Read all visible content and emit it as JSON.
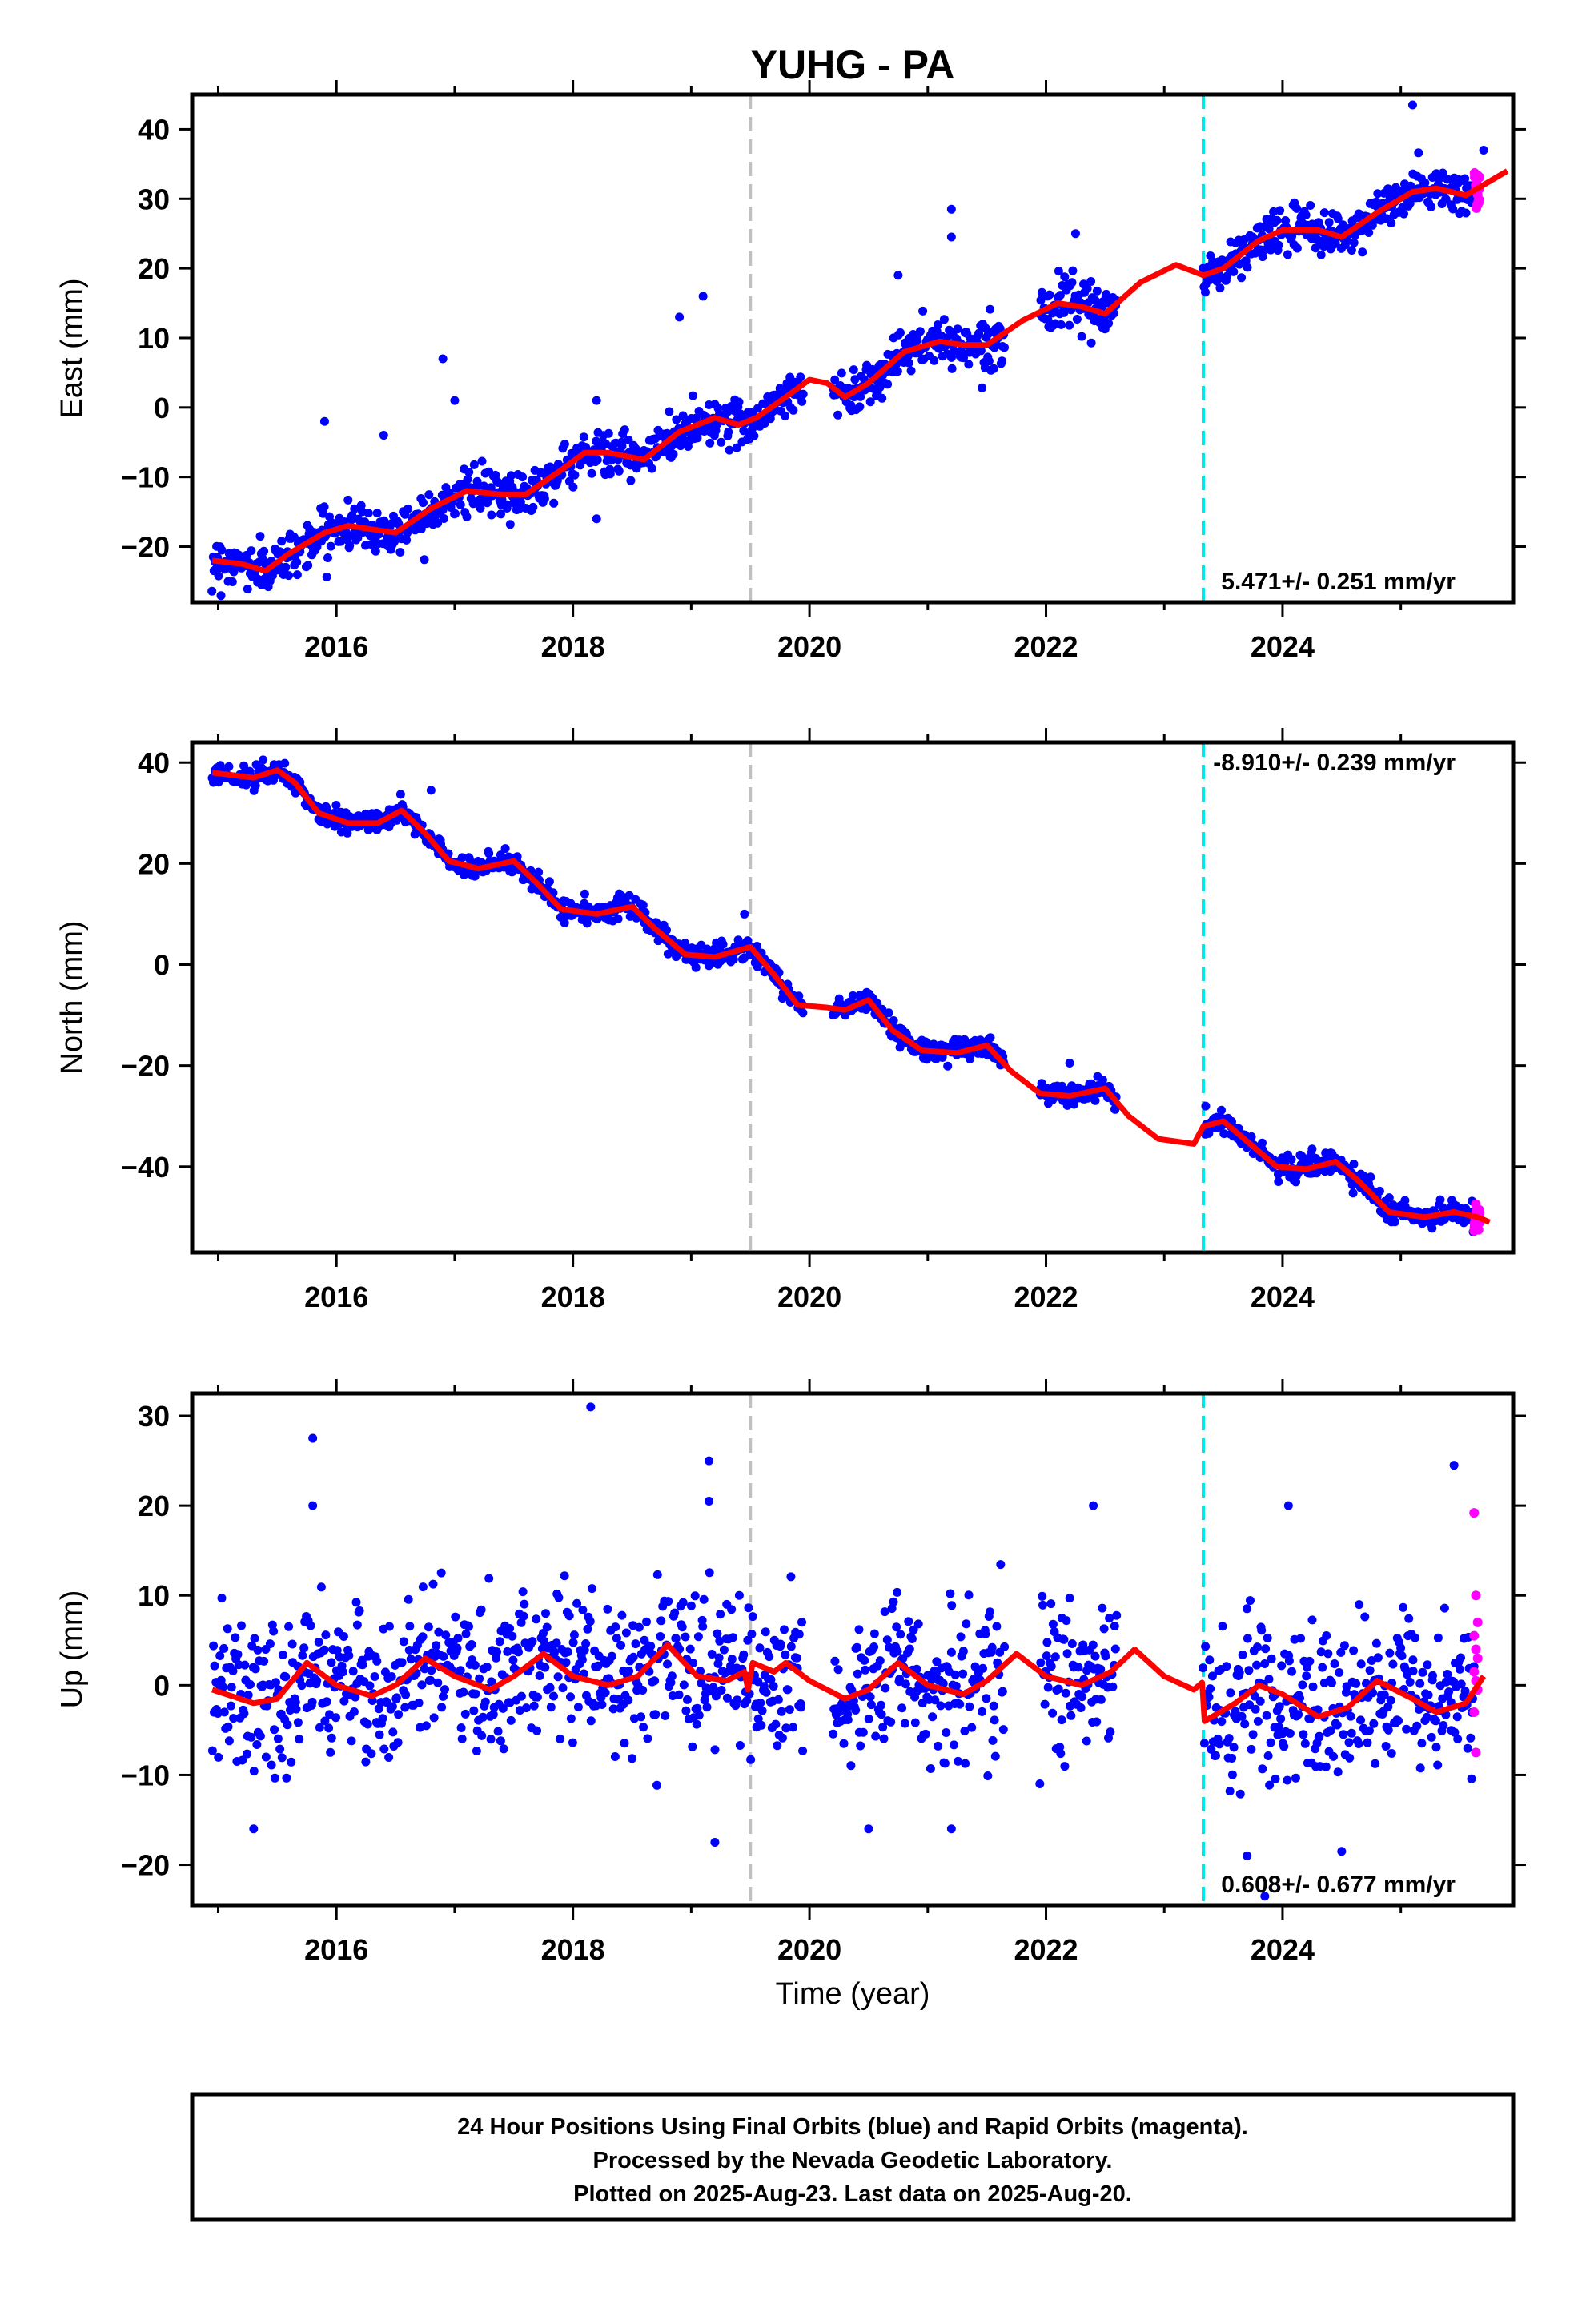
{
  "title": "YUHG - PA",
  "xlabel": "Time (year)",
  "footer": [
    "24 Hour Positions Using Final Orbits (blue) and Rapid Orbits (magenta).",
    "Processed by the Nevada Geodetic Laboratory.",
    "Plotted on 2025-Aug-23. Last data on 2025-Aug-20."
  ],
  "colors": {
    "final": "#0000ff",
    "rapid": "#ff00ff",
    "model": "#ff0000",
    "event_gray": "#c0c0c0",
    "event_cyan": "#00e5e5"
  },
  "events": [
    {
      "x": 2019.5,
      "color": "gray"
    },
    {
      "x": 2023.33,
      "color": "cyan"
    }
  ],
  "chart_data": [
    {
      "type": "scatter",
      "ylabel": "East (mm)",
      "xlim": [
        2014.78,
        2025.95
      ],
      "ylim": [
        -28,
        45
      ],
      "x_ticks": [
        "2016",
        "2018",
        "2020",
        "2022",
        "2024"
      ],
      "y_ticks": [
        "-20",
        "-10",
        "0",
        "10",
        "20",
        "30",
        "40"
      ],
      "rate": "5.471+/- 0.251 mm/yr",
      "rate_position": "bottom-right",
      "model": [
        [
          2014.95,
          -22
        ],
        [
          2015.2,
          -22.5
        ],
        [
          2015.4,
          -23.5
        ],
        [
          2015.6,
          -21
        ],
        [
          2015.9,
          -18
        ],
        [
          2016.1,
          -17
        ],
        [
          2016.3,
          -17.5
        ],
        [
          2016.5,
          -18
        ],
        [
          2016.8,
          -14.5
        ],
        [
          2017.1,
          -12
        ],
        [
          2017.4,
          -12.5
        ],
        [
          2017.6,
          -12.5
        ],
        [
          2017.9,
          -9
        ],
        [
          2018.1,
          -6.5
        ],
        [
          2018.3,
          -6.5
        ],
        [
          2018.6,
          -7.5
        ],
        [
          2018.9,
          -3.5
        ],
        [
          2019.2,
          -1.5
        ],
        [
          2019.4,
          -2.5
        ],
        [
          2019.55,
          -1.5
        ],
        [
          2019.8,
          1.5
        ],
        [
          2020.0,
          4
        ],
        [
          2020.15,
          3.5
        ],
        [
          2020.3,
          1.5
        ],
        [
          2020.5,
          3.5
        ],
        [
          2020.8,
          8
        ],
        [
          2021.1,
          9.5
        ],
        [
          2021.3,
          9
        ],
        [
          2021.5,
          9
        ],
        [
          2021.8,
          12.5
        ],
        [
          2022.1,
          15
        ],
        [
          2022.3,
          14.5
        ],
        [
          2022.5,
          13.5
        ],
        [
          2022.8,
          18
        ],
        [
          2023.1,
          20.5
        ],
        [
          2023.33,
          19
        ],
        [
          2023.5,
          20
        ],
        [
          2023.8,
          24
        ],
        [
          2024.0,
          25.5
        ],
        [
          2024.3,
          25.5
        ],
        [
          2024.5,
          24.5
        ],
        [
          2024.8,
          28
        ],
        [
          2025.1,
          31
        ],
        [
          2025.3,
          31.5
        ],
        [
          2025.55,
          30.5
        ],
        [
          2025.8,
          33
        ],
        [
          2025.9,
          34
        ]
      ],
      "final_data_spans": [
        [
          2014.95,
          2019.95
        ],
        [
          2020.2,
          2021.65
        ],
        [
          2021.95,
          2022.6
        ],
        [
          2023.33,
          2025.62
        ]
      ],
      "rapid_x_range": [
        2025.62,
        2025.67
      ],
      "scatter_sd": 1.6,
      "outliers": [
        [
          2015.9,
          -2
        ],
        [
          2016.4,
          -4
        ],
        [
          2016.9,
          7
        ],
        [
          2017.0,
          1
        ],
        [
          2018.2,
          -16
        ],
        [
          2018.2,
          1
        ],
        [
          2018.9,
          13
        ],
        [
          2019.1,
          16
        ],
        [
          2021.2,
          28.5
        ],
        [
          2021.2,
          24.5
        ],
        [
          2022.25,
          25
        ],
        [
          2020.75,
          19
        ],
        [
          2025.1,
          43.5
        ],
        [
          2025.7,
          37
        ]
      ]
    },
    {
      "type": "scatter",
      "ylabel": "North (mm)",
      "xlim": [
        2014.78,
        2025.95
      ],
      "ylim": [
        -57,
        44
      ],
      "x_ticks": [
        "2016",
        "2018",
        "2020",
        "2022",
        "2024"
      ],
      "y_ticks": [
        "-40",
        "-20",
        "0",
        "20",
        "40"
      ],
      "rate": "-8.910+/- 0.239 mm/yr",
      "rate_position": "top-right",
      "model": [
        [
          2014.95,
          38
        ],
        [
          2015.3,
          37
        ],
        [
          2015.5,
          38.5
        ],
        [
          2015.65,
          36
        ],
        [
          2015.85,
          30
        ],
        [
          2016.1,
          28
        ],
        [
          2016.35,
          28
        ],
        [
          2016.55,
          30.5
        ],
        [
          2016.75,
          26
        ],
        [
          2016.95,
          20.5
        ],
        [
          2017.2,
          19
        ],
        [
          2017.5,
          20.5
        ],
        [
          2017.7,
          16
        ],
        [
          2017.9,
          11
        ],
        [
          2018.2,
          10
        ],
        [
          2018.5,
          11.5
        ],
        [
          2018.7,
          7
        ],
        [
          2018.95,
          2
        ],
        [
          2019.2,
          1.5
        ],
        [
          2019.5,
          3.5
        ],
        [
          2019.7,
          -2
        ],
        [
          2019.9,
          -8
        ],
        [
          2020.15,
          -8.5
        ],
        [
          2020.3,
          -9
        ],
        [
          2020.5,
          -7
        ],
        [
          2020.7,
          -13
        ],
        [
          2020.95,
          -17
        ],
        [
          2021.25,
          -17.5
        ],
        [
          2021.5,
          -16
        ],
        [
          2021.7,
          -21
        ],
        [
          2021.95,
          -25.5
        ],
        [
          2022.2,
          -26
        ],
        [
          2022.5,
          -24.5
        ],
        [
          2022.7,
          -30
        ],
        [
          2022.95,
          -34.5
        ],
        [
          2023.25,
          -35.5
        ],
        [
          2023.33,
          -32
        ],
        [
          2023.5,
          -31
        ],
        [
          2023.7,
          -35
        ],
        [
          2023.95,
          -40
        ],
        [
          2024.2,
          -40.5
        ],
        [
          2024.45,
          -39
        ],
        [
          2024.65,
          -43
        ],
        [
          2024.9,
          -49
        ],
        [
          2025.2,
          -50
        ],
        [
          2025.45,
          -49
        ],
        [
          2025.65,
          -50
        ],
        [
          2025.75,
          -51
        ]
      ],
      "final_data_spans": [
        [
          2014.95,
          2019.95
        ],
        [
          2020.2,
          2021.65
        ],
        [
          2021.95,
          2022.6
        ],
        [
          2023.33,
          2025.62
        ]
      ],
      "rapid_x_range": [
        2025.62,
        2025.67
      ],
      "scatter_sd": 1.1,
      "outliers": [
        [
          2016.8,
          34.5
        ],
        [
          2018.1,
          14
        ],
        [
          2019.45,
          10
        ],
        [
          2022.2,
          -19.5
        ],
        [
          2023.35,
          -28
        ],
        [
          2024.25,
          -36.5
        ]
      ]
    },
    {
      "type": "scatter",
      "ylabel": "Up (mm)",
      "xlim": [
        2014.78,
        2025.95
      ],
      "ylim": [
        -24.5,
        32.5
      ],
      "x_ticks": [
        "2016",
        "2018",
        "2020",
        "2022",
        "2024"
      ],
      "y_ticks": [
        "-20",
        "-10",
        "0",
        "10",
        "20",
        "30"
      ],
      "rate": "0.608+/- 0.677 mm/yr",
      "rate_position": "bottom-right",
      "model": [
        [
          2014.95,
          -0.5
        ],
        [
          2015.3,
          -2
        ],
        [
          2015.5,
          -1.5
        ],
        [
          2015.75,
          2.5
        ],
        [
          2016.0,
          0
        ],
        [
          2016.3,
          -1.2
        ],
        [
          2016.5,
          0
        ],
        [
          2016.75,
          3
        ],
        [
          2017.0,
          1
        ],
        [
          2017.3,
          -0.5
        ],
        [
          2017.5,
          1
        ],
        [
          2017.75,
          3.5
        ],
        [
          2018.0,
          1
        ],
        [
          2018.3,
          0
        ],
        [
          2018.55,
          1
        ],
        [
          2018.8,
          4.5
        ],
        [
          2019.05,
          1
        ],
        [
          2019.3,
          0.5
        ],
        [
          2019.45,
          1.5
        ],
        [
          2019.48,
          -0.5
        ],
        [
          2019.52,
          2.5
        ],
        [
          2019.7,
          1.5
        ],
        [
          2019.8,
          2.5
        ],
        [
          2020.0,
          0.5
        ],
        [
          2020.3,
          -1.5
        ],
        [
          2020.5,
          -0.5
        ],
        [
          2020.75,
          2.5
        ],
        [
          2021.0,
          0
        ],
        [
          2021.3,
          -1
        ],
        [
          2021.5,
          0.5
        ],
        [
          2021.75,
          3.5
        ],
        [
          2022.0,
          1
        ],
        [
          2022.3,
          0
        ],
        [
          2022.55,
          1.5
        ],
        [
          2022.75,
          4
        ],
        [
          2023.0,
          1
        ],
        [
          2023.25,
          -0.5
        ],
        [
          2023.32,
          0.3
        ],
        [
          2023.34,
          -4
        ],
        [
          2023.6,
          -2
        ],
        [
          2023.8,
          0
        ],
        [
          2024.0,
          -1
        ],
        [
          2024.3,
          -3.5
        ],
        [
          2024.55,
          -2.5
        ],
        [
          2024.8,
          0.5
        ],
        [
          2025.1,
          -1.5
        ],
        [
          2025.3,
          -3
        ],
        [
          2025.55,
          -2
        ],
        [
          2025.7,
          1
        ]
      ],
      "final_data_spans": [
        [
          2014.95,
          2019.95
        ],
        [
          2020.2,
          2021.65
        ],
        [
          2021.95,
          2022.6
        ],
        [
          2023.33,
          2025.62
        ]
      ],
      "rapid_x_range": [
        2025.62,
        2025.67
      ],
      "scatter_sd": 4.2,
      "outliers": [
        [
          2015.8,
          27.5
        ],
        [
          2015.8,
          20
        ],
        [
          2018.15,
          31
        ],
        [
          2019.15,
          25
        ],
        [
          2019.15,
          20.5
        ],
        [
          2022.4,
          20
        ],
        [
          2024.05,
          20
        ],
        [
          2025.45,
          24.5
        ],
        [
          2015.3,
          -16
        ],
        [
          2019.2,
          -17.5
        ],
        [
          2020.5,
          -16
        ],
        [
          2021.2,
          -16
        ],
        [
          2023.7,
          -19
        ],
        [
          2023.85,
          -23.5
        ],
        [
          2024.5,
          -18.5
        ]
      ],
      "rapid_points": [
        19.2,
        10,
        7,
        5.5,
        4,
        3,
        1.5,
        0.5,
        -0.5,
        -3,
        -7.5
      ]
    }
  ]
}
